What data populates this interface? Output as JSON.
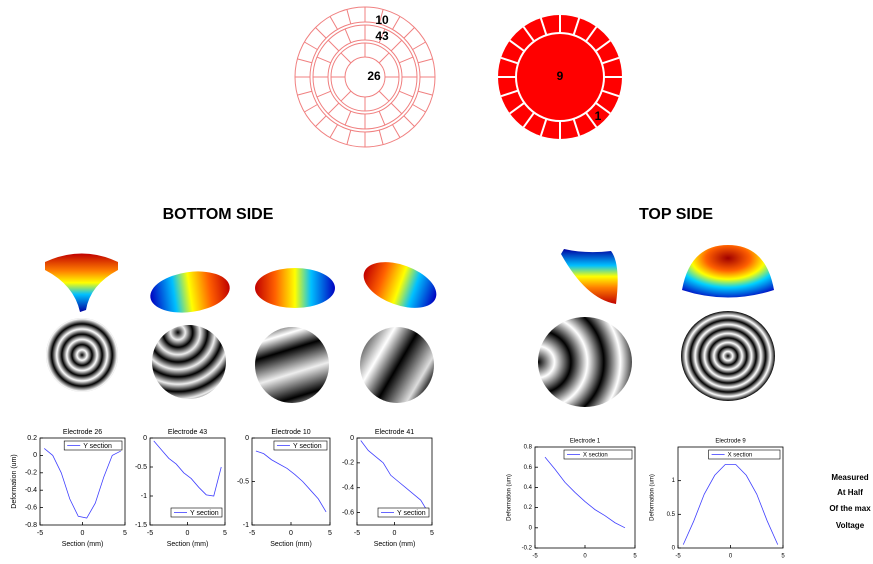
{
  "headings": {
    "bottom": "BOTTOM SIDE",
    "top": "TOP SIDE"
  },
  "electrodes": {
    "bottom": [
      10,
      43,
      26
    ],
    "top": [
      9,
      1
    ]
  },
  "note": [
    "Measured",
    "At Half",
    "Of the max",
    "Voltage"
  ],
  "chart_data": [
    {
      "type": "line",
      "title": "Electrode 26",
      "x_label": "Section (mm)",
      "y_label": "Deformation (um)",
      "x": [
        -4.5,
        -3.5,
        -2.5,
        -1.5,
        -0.5,
        0.5,
        1.5,
        2.5,
        3.5,
        4.5
      ],
      "series": [
        {
          "name": "Y section",
          "color": "#4040ff",
          "values": [
            0.08,
            0.0,
            -0.2,
            -0.5,
            -0.7,
            -0.72,
            -0.55,
            -0.25,
            0.0,
            0.05
          ]
        }
      ],
      "xlim": [
        -5,
        5
      ],
      "xticks": [
        -5,
        0,
        5
      ],
      "ylim": [
        -0.8,
        0.2
      ],
      "yticks": [
        -0.8,
        -0.6,
        -0.4,
        -0.2,
        0,
        0.2
      ],
      "legend": "upper right"
    },
    {
      "type": "line",
      "title": "Electrode 43",
      "x_label": "Section (mm)",
      "x": [
        -4.5,
        -3.5,
        -2.5,
        -1.5,
        -0.5,
        0.5,
        1.5,
        2.5,
        3.5,
        4.5
      ],
      "series": [
        {
          "name": "Y section",
          "color": "#4040ff",
          "values": [
            -0.05,
            -0.2,
            -0.35,
            -0.45,
            -0.6,
            -0.7,
            -0.85,
            -0.98,
            -1.0,
            -0.5
          ]
        }
      ],
      "xlim": [
        -5,
        5
      ],
      "xticks": [
        -5,
        0,
        5
      ],
      "ylim": [
        -1.5,
        0
      ],
      "yticks": [
        -1.5,
        -1,
        -0.5,
        0
      ],
      "legend": "lower right"
    },
    {
      "type": "line",
      "title": "Electrode 10",
      "x_label": "Section (mm)",
      "x": [
        -4.5,
        -3.5,
        -2.5,
        -1.5,
        -0.5,
        0.5,
        1.5,
        2.5,
        3.5,
        4.5
      ],
      "series": [
        {
          "name": "Y section",
          "color": "#4040ff",
          "values": [
            -0.15,
            -0.18,
            -0.25,
            -0.3,
            -0.35,
            -0.42,
            -0.5,
            -0.6,
            -0.7,
            -0.85
          ]
        }
      ],
      "xlim": [
        -5,
        5
      ],
      "xticks": [
        -5,
        0,
        5
      ],
      "ylim": [
        -1,
        0
      ],
      "yticks": [
        -1,
        -0.5,
        0
      ],
      "legend": "upper right"
    },
    {
      "type": "line",
      "title": "Electrode 41",
      "x_label": "Section (mm)",
      "x": [
        -4.5,
        -3.5,
        -2.5,
        -1.5,
        -0.5,
        0.5,
        1.5,
        2.5,
        3.5,
        4.5
      ],
      "series": [
        {
          "name": "Y section",
          "color": "#4040ff",
          "values": [
            -0.02,
            -0.1,
            -0.15,
            -0.2,
            -0.3,
            -0.35,
            -0.4,
            -0.45,
            -0.5,
            -0.6
          ]
        }
      ],
      "xlim": [
        -5,
        5
      ],
      "xticks": [
        -5,
        0,
        5
      ],
      "ylim": [
        -0.7,
        0
      ],
      "yticks": [
        -0.6,
        -0.4,
        -0.2,
        0
      ],
      "legend": "lower right"
    },
    {
      "type": "line",
      "title": "Electrode 1",
      "x_label": "Section (mm)",
      "y_label": "Deformation (um)",
      "x": [
        -4,
        -3,
        -2,
        -1,
        0,
        1,
        2,
        3,
        4
      ],
      "series": [
        {
          "name": "X section",
          "color": "#4040ff",
          "values": [
            0.7,
            0.58,
            0.45,
            0.35,
            0.26,
            0.18,
            0.12,
            0.05,
            0.0
          ]
        }
      ],
      "xlim": [
        -5,
        5
      ],
      "xticks": [
        -5,
        0,
        5
      ],
      "ylim": [
        -0.2,
        0.8
      ],
      "yticks": [
        -0.2,
        0,
        0.2,
        0.4,
        0.6,
        0.8
      ],
      "legend": "upper right"
    },
    {
      "type": "line",
      "title": "Electrode 9",
      "x_label": "Section (mm)",
      "y_label": "Deformation (um)",
      "x": [
        -4.5,
        -3.5,
        -2.5,
        -1.5,
        -0.5,
        0.5,
        1.5,
        2.5,
        3.5,
        4.5
      ],
      "series": [
        {
          "name": "X section",
          "color": "#4040ff",
          "values": [
            0.05,
            0.4,
            0.8,
            1.08,
            1.24,
            1.24,
            1.08,
            0.8,
            0.4,
            0.05
          ]
        }
      ],
      "xlim": [
        -5,
        5
      ],
      "xticks": [
        -5,
        0,
        5
      ],
      "ylim": [
        0,
        1.5
      ],
      "yticks": [
        0,
        0.5,
        1
      ],
      "legend": "upper right"
    }
  ]
}
